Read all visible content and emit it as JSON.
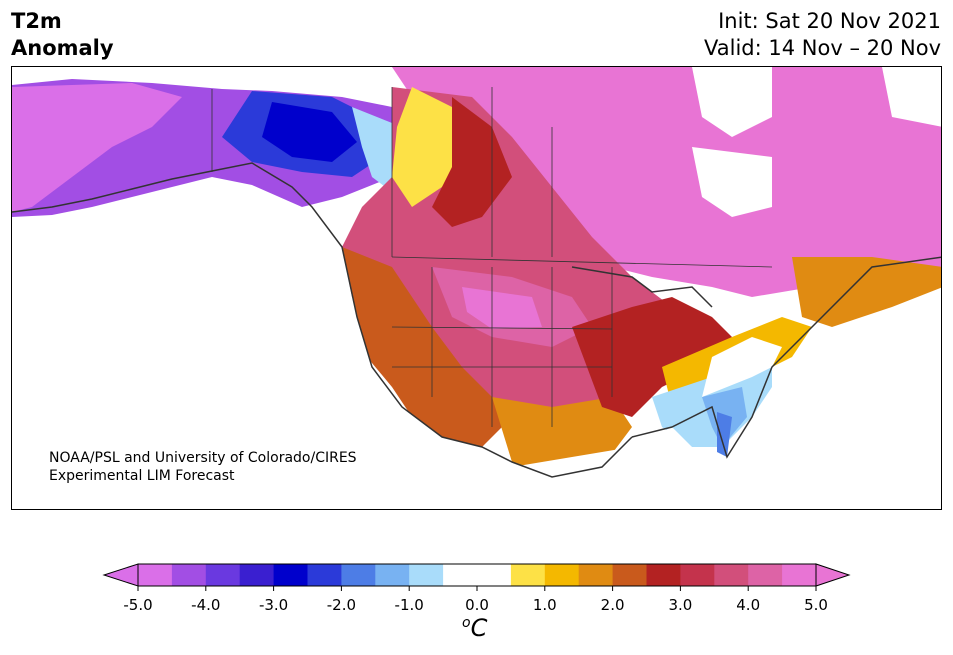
{
  "title": {
    "line1": "T2m",
    "line2": "Anomaly"
  },
  "header": {
    "init": "Init: Sat 20 Nov 2021",
    "valid": "Valid: 14 Nov – 20 Nov"
  },
  "credit": {
    "line1": "NOAA/PSL and University of Colorado/CIRES",
    "line2": "Experimental LIM Forecast"
  },
  "colorbar": {
    "unit_sup": "o",
    "unit_main": "C",
    "ticks": [
      "-5.0",
      "-4.0",
      "-3.0",
      "-2.0",
      "-1.0",
      "0.0",
      "1.0",
      "2.0",
      "3.0",
      "4.0",
      "5.0"
    ],
    "colors": [
      "#da6fe8",
      "#a24ee4",
      "#6a39e0",
      "#3a1fd0",
      "#0000cc",
      "#2b3ad9",
      "#4d7de6",
      "#78b2f2",
      "#a9dcfa",
      "#ffffff",
      "#ffffff",
      "#fde146",
      "#f4b800",
      "#e08b12",
      "#c95a1c",
      "#b32222",
      "#c4334c",
      "#d24f7b",
      "#dd63a6",
      "#e874d4"
    ],
    "under_color": "#da6fe8",
    "over_color": "#e874d4"
  }
}
